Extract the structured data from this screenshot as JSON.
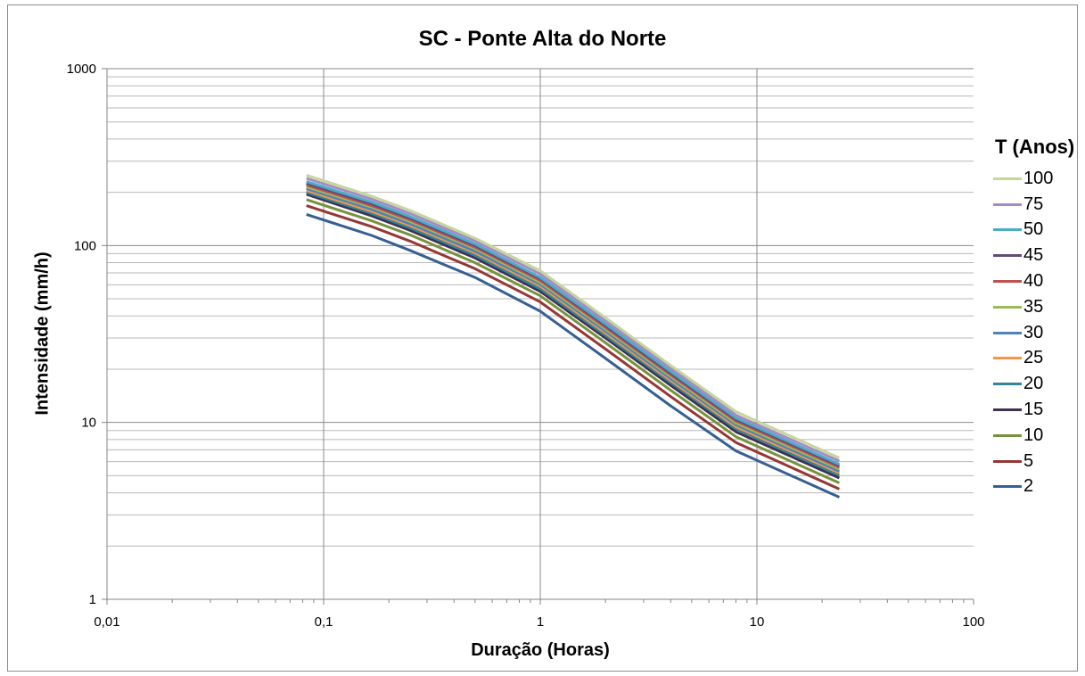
{
  "chart_data": {
    "type": "line",
    "title": "SC - Ponte Alta do Norte",
    "xlabel": "Duração (Horas)",
    "ylabel": "Intensidade (mm/h)",
    "x_scale": "log",
    "y_scale": "log",
    "xlim": [
      0.01,
      100
    ],
    "ylim": [
      1,
      1000
    ],
    "x_ticks": [
      "0,01",
      "0,1",
      "1",
      "10",
      "100"
    ],
    "y_ticks": [
      "1",
      "10",
      "100",
      "1000"
    ],
    "grid": true,
    "legend_title": "T (Anos)",
    "legend_position": "right",
    "x": [
      0.0833,
      0.1667,
      0.25,
      0.5,
      1,
      2,
      4,
      8,
      24
    ],
    "series": [
      {
        "name": "100",
        "color": "#C4D79B",
        "values": [
          250,
          190,
          158,
          110,
          72,
          39,
          21,
          11.5,
          6.3
        ]
      },
      {
        "name": "75",
        "color": "#A58BC6",
        "values": [
          240,
          183,
          152,
          106,
          69,
          37.5,
          20.2,
          11.0,
          6.05
        ]
      },
      {
        "name": "50",
        "color": "#4BACC6",
        "values": [
          230,
          176,
          146,
          102,
          66,
          36,
          19.4,
          10.6,
          5.8
        ]
      },
      {
        "name": "45",
        "color": "#604A7B",
        "values": [
          225,
          172,
          143,
          100,
          65,
          35.3,
          19.0,
          10.4,
          5.7
        ]
      },
      {
        "name": "40",
        "color": "#C0504D",
        "values": [
          220,
          168,
          140,
          98,
          63.5,
          34.5,
          18.6,
          10.2,
          5.58
        ]
      },
      {
        "name": "35",
        "color": "#9BBB59",
        "values": [
          215,
          165,
          137,
          96,
          62,
          33.7,
          18.2,
          9.95,
          5.45
        ]
      },
      {
        "name": "30",
        "color": "#4F81BD",
        "values": [
          210,
          160,
          133,
          93,
          60.5,
          32.8,
          17.7,
          9.7,
          5.3
        ]
      },
      {
        "name": "25",
        "color": "#F79646",
        "values": [
          205,
          156,
          130,
          91,
          59,
          32,
          17.3,
          9.45,
          5.18
        ]
      },
      {
        "name": "20",
        "color": "#31859C",
        "values": [
          200,
          152,
          126,
          88,
          57,
          31,
          16.8,
          9.2,
          5.03
        ]
      },
      {
        "name": "15",
        "color": "#403151",
        "values": [
          195,
          147,
          122,
          85,
          55,
          30,
          16.2,
          8.85,
          4.85
        ]
      },
      {
        "name": "10",
        "color": "#76923C",
        "values": [
          182,
          138,
          115,
          80,
          52,
          28.2,
          15.2,
          8.3,
          4.55
        ]
      },
      {
        "name": "5",
        "color": "#953735",
        "values": [
          168,
          128,
          106,
          74,
          48,
          26,
          14.0,
          7.7,
          4.2
        ]
      },
      {
        "name": "2",
        "color": "#366092",
        "values": [
          150,
          114,
          94,
          66,
          42.5,
          23,
          12.4,
          6.9,
          3.78
        ]
      }
    ]
  }
}
